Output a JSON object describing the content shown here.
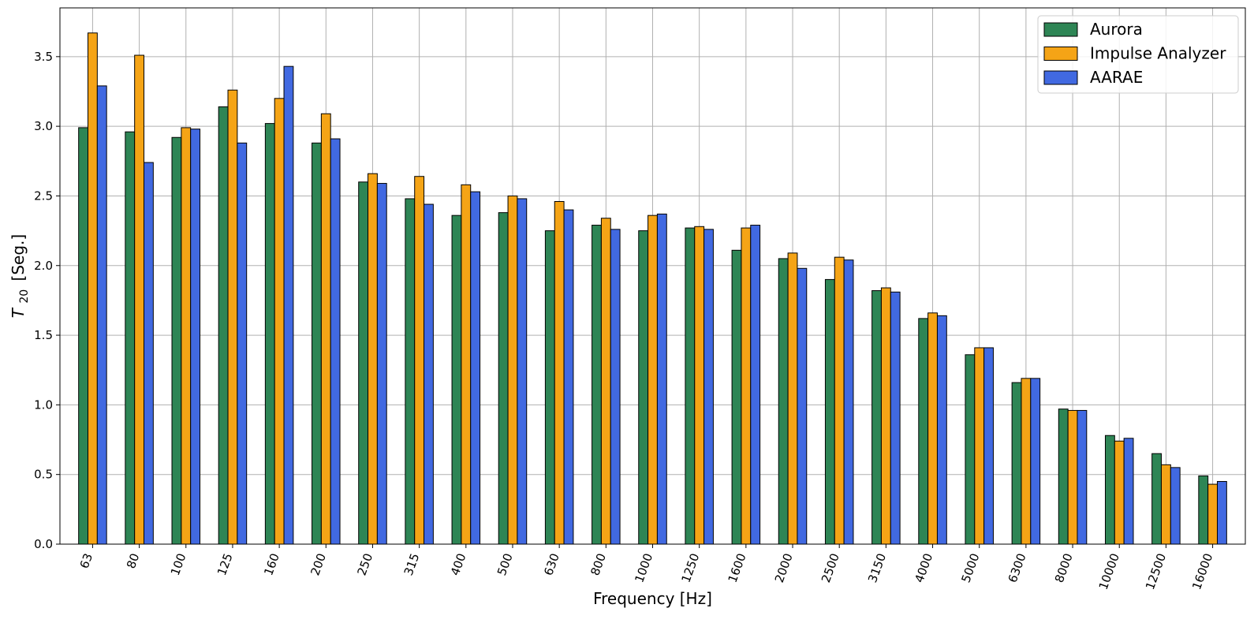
{
  "chart_data": {
    "type": "bar",
    "xlabel": "Frequency [Hz]",
    "ylabel_main": "T",
    "ylabel_sub": "20",
    "ylabel_unit": "[Seg.]",
    "ylim": [
      0,
      3.85
    ],
    "yticks": [
      "0.0",
      "0.5",
      "1.0",
      "1.5",
      "2.0",
      "2.5",
      "3.0",
      "3.5"
    ],
    "grid": true,
    "legend_position": "top-right",
    "categories": [
      "63",
      "80",
      "100",
      "125",
      "160",
      "200",
      "250",
      "315",
      "400",
      "500",
      "630",
      "800",
      "1000",
      "1250",
      "1600",
      "2000",
      "2500",
      "3150",
      "4000",
      "5000",
      "6300",
      "8000",
      "10000",
      "12500",
      "16000"
    ],
    "series": [
      {
        "name": "Aurora",
        "color": "#2e8555",
        "values": [
          2.99,
          2.96,
          2.92,
          3.14,
          3.02,
          2.88,
          2.6,
          2.48,
          2.36,
          2.38,
          2.25,
          2.29,
          2.25,
          2.27,
          2.11,
          2.05,
          1.9,
          1.82,
          1.62,
          1.36,
          1.16,
          0.97,
          0.78,
          0.65,
          0.49
        ]
      },
      {
        "name": "Impulse Analyzer",
        "color": "#f5a416",
        "values": [
          3.67,
          3.51,
          2.99,
          3.26,
          3.2,
          3.09,
          2.66,
          2.64,
          2.58,
          2.5,
          2.46,
          2.34,
          2.36,
          2.28,
          2.27,
          2.09,
          2.06,
          1.84,
          1.66,
          1.41,
          1.19,
          0.96,
          0.74,
          0.57,
          0.43
        ]
      },
      {
        "name": "AARAE",
        "color": "#4169e1",
        "values": [
          3.29,
          2.74,
          2.98,
          2.88,
          3.43,
          2.91,
          2.59,
          2.44,
          2.53,
          2.48,
          2.4,
          2.26,
          2.37,
          2.26,
          2.29,
          1.98,
          2.04,
          1.81,
          1.64,
          1.41,
          1.19,
          0.96,
          0.76,
          0.55,
          0.45
        ]
      }
    ]
  }
}
